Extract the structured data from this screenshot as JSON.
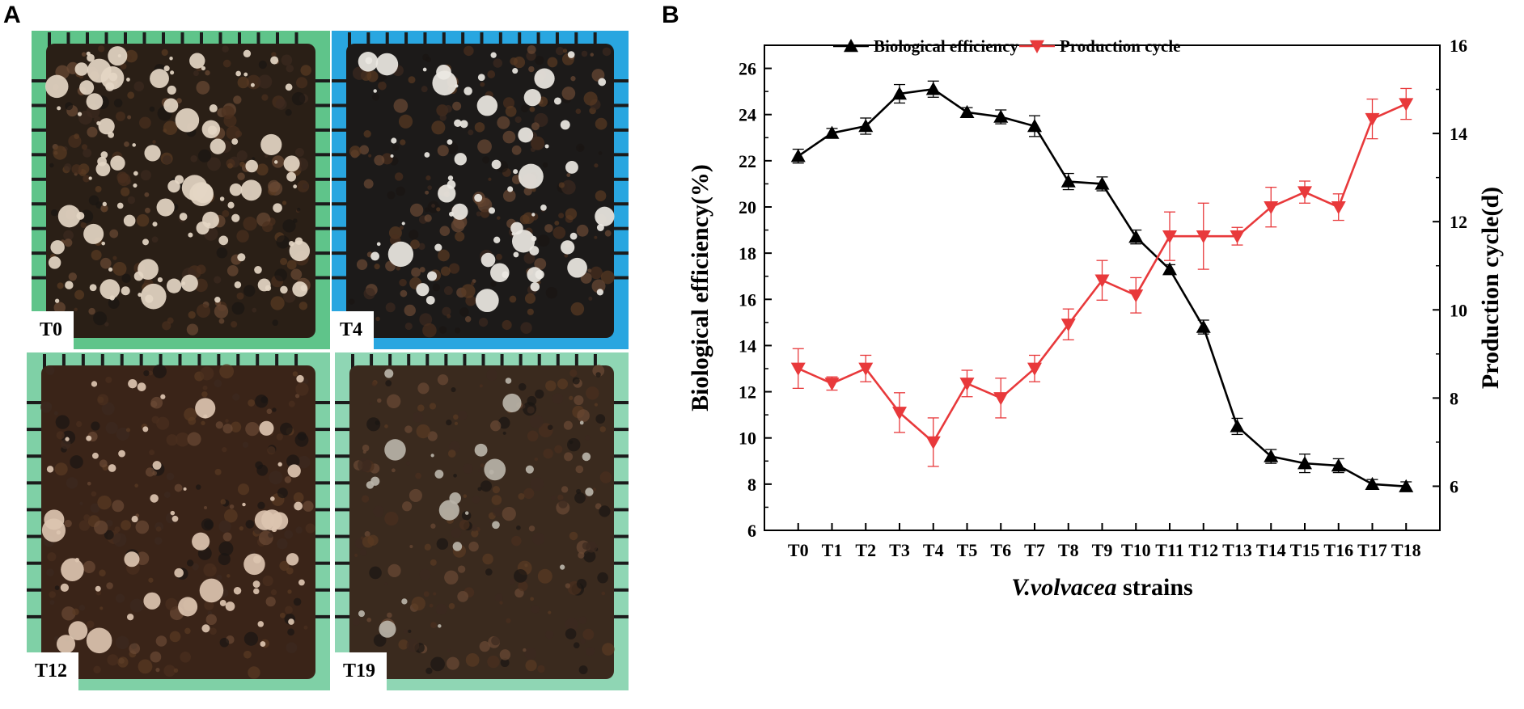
{
  "panels": {
    "a_label": "A",
    "b_label": "B"
  },
  "photos": [
    {
      "tag": "T0",
      "bg": "#5fc48a",
      "substrate": "#2a1f16",
      "mushroom": "#e4d6c4"
    },
    {
      "tag": "T4",
      "bg": "#29a6e0",
      "substrate": "#1c1a19",
      "mushroom": "#ece8e2"
    },
    {
      "tag": "T12",
      "bg": "#7fd0a6",
      "substrate": "#3a2418",
      "mushroom": "#dcc4b0"
    },
    {
      "tag": "T19",
      "bg": "#8fd6b4",
      "substrate": "#3a2a1e",
      "mushroom": "#b9b3a8"
    }
  ],
  "chart_data": {
    "type": "line",
    "categories": [
      "T0",
      "T1",
      "T2",
      "T3",
      "T4",
      "T5",
      "T6",
      "T7",
      "T8",
      "T9",
      "T10",
      "T11",
      "T12",
      "T13",
      "T14",
      "T15",
      "T16",
      "T17",
      "T18"
    ],
    "series": [
      {
        "name": "Biological efficiency",
        "axis": "left",
        "color": "#000000",
        "marker": "triangle-up",
        "values": [
          22.2,
          23.2,
          23.5,
          24.9,
          25.1,
          24.1,
          23.9,
          23.5,
          21.1,
          21.0,
          18.7,
          17.3,
          14.8,
          10.5,
          9.2,
          8.9,
          8.8,
          8.0,
          7.9
        ],
        "errors": [
          0.3,
          0.2,
          0.35,
          0.4,
          0.35,
          0.2,
          0.3,
          0.45,
          0.35,
          0.3,
          0.3,
          0.2,
          0.3,
          0.35,
          0.3,
          0.4,
          0.3,
          0.2,
          0.2
        ]
      },
      {
        "name": "Production cycle",
        "axis": "right",
        "color": "#e8393b",
        "marker": "triangle-down",
        "values": [
          8.67,
          8.33,
          8.67,
          7.67,
          7.0,
          8.33,
          8.0,
          8.67,
          9.67,
          10.67,
          10.33,
          11.67,
          11.67,
          11.67,
          12.33,
          12.67,
          12.33,
          14.33,
          14.67
        ],
        "errors": [
          0.45,
          0.15,
          0.3,
          0.45,
          0.55,
          0.3,
          0.45,
          0.3,
          0.35,
          0.45,
          0.4,
          0.55,
          0.75,
          0.2,
          0.45,
          0.25,
          0.3,
          0.45,
          0.35
        ]
      }
    ],
    "xlabel_italic": "V.volvacea",
    "xlabel_rest": " strains",
    "ylabel": "Biological efficiency(%)",
    "y2label": "Production cycle(d)",
    "ylim": [
      6,
      27
    ],
    "yticks": [
      6,
      8,
      10,
      12,
      14,
      16,
      18,
      20,
      22,
      24,
      26
    ],
    "y2lim": [
      5,
      16
    ],
    "y2ticks": [
      6,
      8,
      10,
      12,
      14,
      16
    ],
    "legend": "top"
  }
}
